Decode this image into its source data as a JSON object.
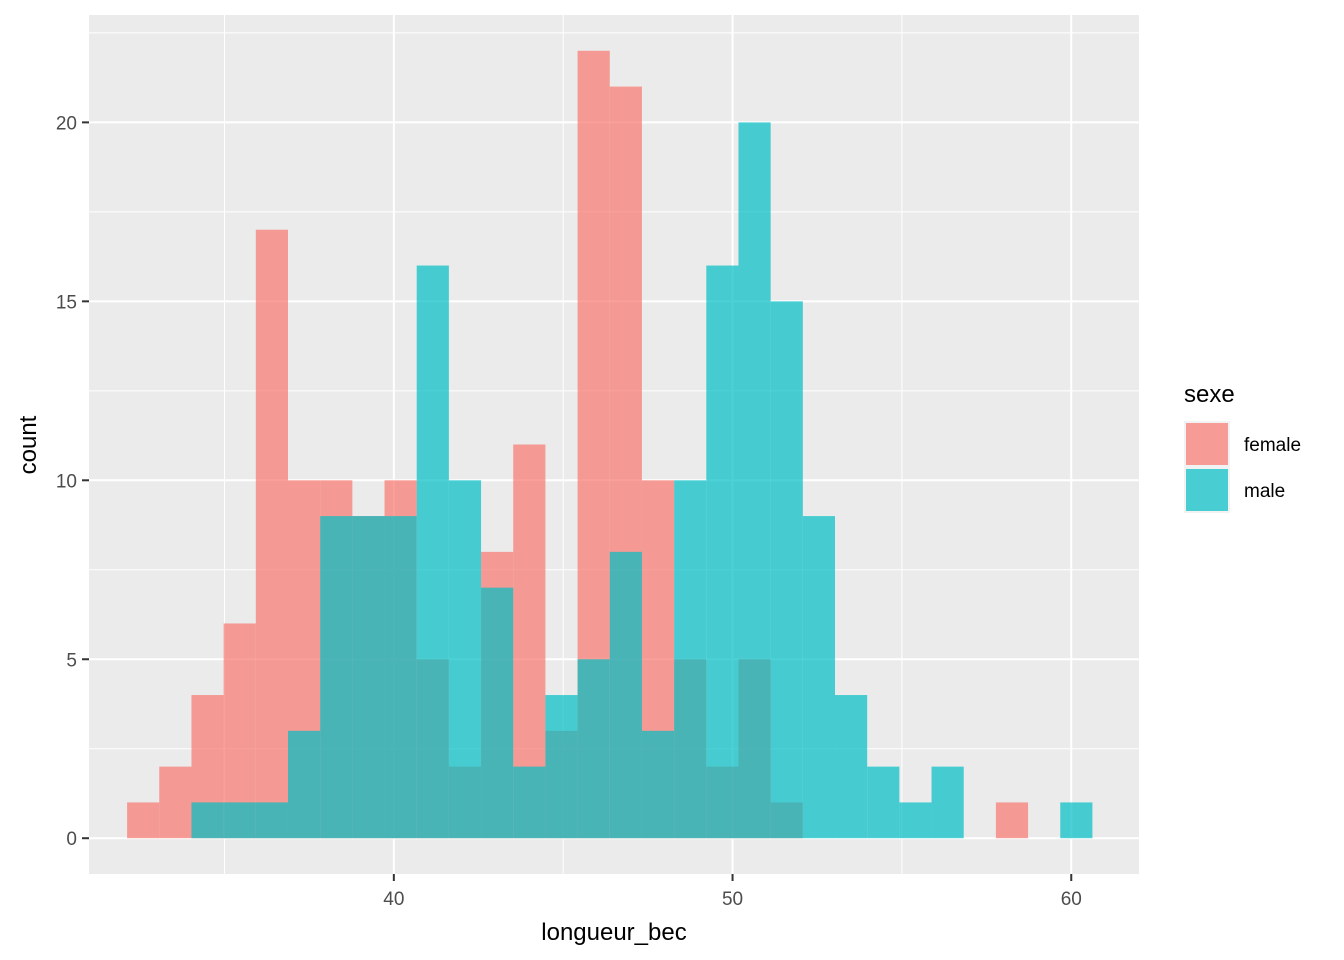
{
  "chart_data": {
    "type": "bar",
    "subtype": "overlapping-histogram",
    "xlabel": "longueur_bec",
    "ylabel": "count",
    "x_ticks": [
      40,
      50,
      60
    ],
    "y_ticks": [
      0,
      5,
      10,
      15,
      20
    ],
    "xlim": [
      31,
      62
    ],
    "ylim": [
      -1,
      23
    ],
    "bin_width": 0.95,
    "grid": true,
    "legend": {
      "title": "sexe",
      "placement": "right"
    },
    "bin_centers": [
      32.6,
      33.55,
      34.5,
      35.45,
      36.4,
      37.35,
      38.3,
      39.25,
      40.2,
      41.15,
      42.1,
      43.05,
      44.0,
      44.95,
      45.9,
      46.85,
      47.8,
      48.75,
      49.7,
      50.65,
      51.6,
      52.55,
      53.5,
      54.45,
      55.4,
      56.35,
      57.3,
      58.25,
      59.2,
      60.15
    ],
    "series": [
      {
        "name": "female",
        "color": "#F8766D",
        "values": [
          1,
          2,
          4,
          6,
          17,
          10,
          10,
          9,
          10,
          5,
          2,
          8,
          11,
          3,
          22,
          21,
          10,
          5,
          2,
          5,
          1,
          0,
          0,
          0,
          0,
          0,
          0,
          1,
          0,
          0
        ]
      },
      {
        "name": "male",
        "color": "#00BFC4",
        "values": [
          0,
          0,
          1,
          1,
          1,
          3,
          9,
          9,
          9,
          16,
          10,
          7,
          2,
          4,
          5,
          8,
          3,
          10,
          16,
          20,
          15,
          9,
          4,
          2,
          1,
          2,
          0,
          0,
          0,
          1
        ]
      }
    ]
  }
}
